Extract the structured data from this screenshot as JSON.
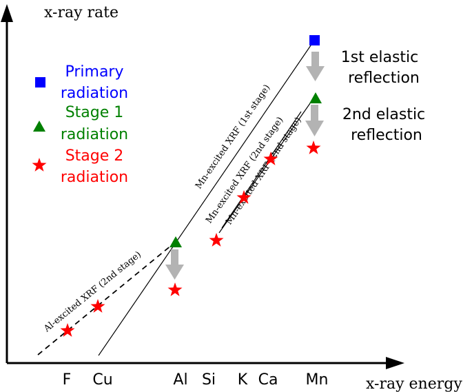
{
  "axes": {
    "y_label": "x-ray rate",
    "x_label": "x-ray energy",
    "ticks": [
      "F",
      "Cu",
      "Al",
      "Si",
      "K",
      "Ca",
      "Mn"
    ]
  },
  "legend": {
    "primary": {
      "line1": "Primary",
      "line2": "radiation",
      "color": "#0000ff",
      "marker": "square"
    },
    "stage1": {
      "line1": "Stage 1",
      "line2": "radiation",
      "color": "#008000",
      "marker": "triangle"
    },
    "stage2": {
      "line1": "Stage 2",
      "line2": "radiation",
      "color": "#ff0000",
      "marker": "star"
    }
  },
  "reflections": {
    "first": {
      "line1": "1st elastic",
      "line2": "reflection"
    },
    "second": {
      "line1": "2nd elastic",
      "line2": "reflection"
    }
  },
  "line_labels": {
    "mn_stage1": "Mn-excited XRF (1st stage)",
    "mn_stage2_upper": "Mn-excited XRF (2nd stage)",
    "mn_stage2_lower": "Mn-excited XRF (2nd stage)",
    "al_stage2": "Al-excited XRF (2nd stage)"
  },
  "colors": {
    "axis": "#000000",
    "arrow": "#b3b3b3"
  }
}
